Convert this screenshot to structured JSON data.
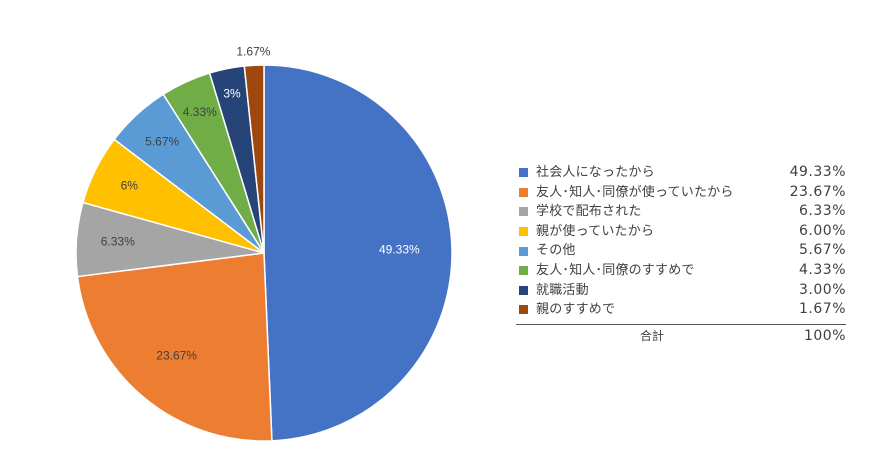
{
  "chart_data": {
    "type": "pie",
    "title": "",
    "categories": [
      "社会人になったから",
      "友人･知人･同僚が使っていたから",
      "学校で配布された",
      "親が使っていたから",
      "その他",
      "友人･知人･同僚のすすめで",
      "就職活動",
      "親のすすめで"
    ],
    "values": [
      49.33,
      23.67,
      6.33,
      6.0,
      5.67,
      4.33,
      3.0,
      1.67
    ],
    "slice_labels": [
      "49.33%",
      "23.67%",
      "6.33%",
      "6%",
      "5.67%",
      "4.33%",
      "3%",
      "1.67%"
    ],
    "legend_values": [
      "49.33%",
      "23.67%",
      "6.33%",
      "6.00%",
      "5.67%",
      "4.33%",
      "3.00%",
      "1.67%"
    ],
    "colors": [
      "#4472C4",
      "#ED7D31",
      "#A5A5A5",
      "#FFC000",
      "#5B9BD5",
      "#70AD47",
      "#264478",
      "#9E480E"
    ],
    "label_colors": [
      "#FFFFFF",
      "#404040",
      "#404040",
      "#404040",
      "#404040",
      "#404040",
      "#FFFFFF",
      "#404040"
    ],
    "start_angle_deg": 0,
    "direction": "clockwise",
    "legend_position": "right",
    "total_label": "合計",
    "total_value": "100%"
  }
}
